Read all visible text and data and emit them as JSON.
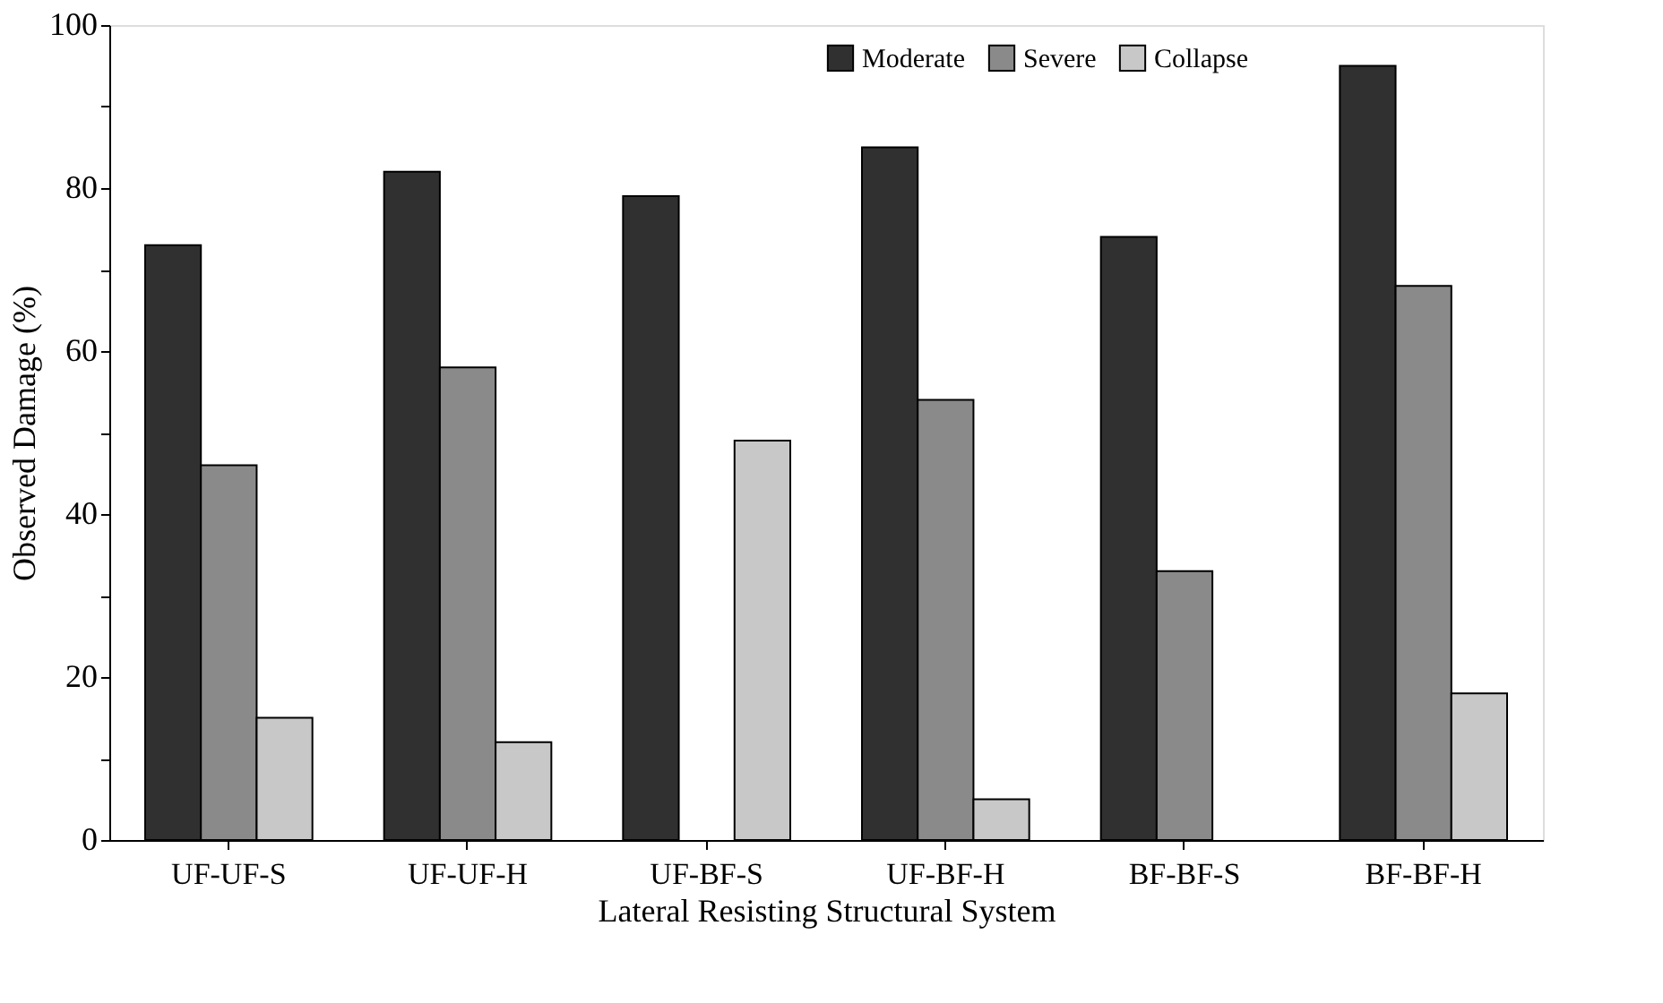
{
  "chart_data": {
    "type": "bar",
    "xlabel": "Lateral Resisting Structural System",
    "ylabel": "Observed Damage (%)",
    "categories": [
      "UF-UF-S",
      "UF-UF-H",
      "UF-BF-S",
      "UF-BF-H",
      "BF-BF-S",
      "BF-BF-H"
    ],
    "series": [
      {
        "name": "Moderate",
        "color": "#303030",
        "values": [
          73,
          82,
          79,
          85,
          74,
          95
        ]
      },
      {
        "name": "Severe",
        "color": "#8a8a8a",
        "values": [
          46,
          58,
          null,
          54,
          33,
          68
        ]
      },
      {
        "name": "Collapse",
        "color": "#c8c8c8",
        "values": [
          15,
          12,
          49,
          5,
          null,
          18
        ]
      }
    ],
    "ylim": [
      0,
      100
    ],
    "yticks": [
      0,
      {
        "value": 10,
        "label": null
      },
      20,
      {
        "value": 30,
        "label": null
      },
      40,
      {
        "value": 50,
        "label": null
      },
      60,
      {
        "value": 70,
        "label": null
      },
      80,
      {
        "value": 90,
        "label": null
      },
      100
    ],
    "grid": false,
    "legend": "top right"
  }
}
